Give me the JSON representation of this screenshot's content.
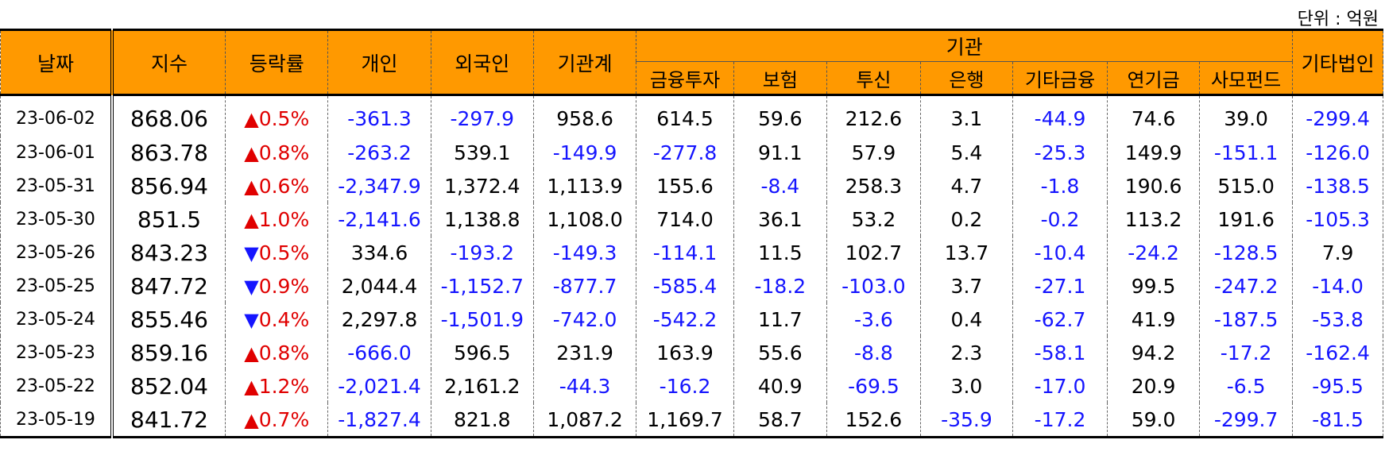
{
  "unit_label": "단위 : 억원",
  "headers": {
    "date": "날짜",
    "index": "지수",
    "change": "등락률",
    "individual": "개인",
    "foreign": "외국인",
    "inst_total": "기관계",
    "institution": "기관",
    "sub": [
      "금융투자",
      "보험",
      "투신",
      "은행",
      "기타금융",
      "연기금",
      "사모펀드"
    ],
    "other_corp": "기타법인"
  },
  "rows": [
    {
      "date": "23-06-02",
      "index": "868.06",
      "dir": "up",
      "change": "0.5%",
      "individual": "-361.3",
      "foreign": "-297.9",
      "inst_total": "958.6",
      "sub": [
        "614.5",
        "59.6",
        "212.6",
        "3.1",
        "-44.9",
        "74.6",
        "39.0"
      ],
      "other_corp": "-299.4"
    },
    {
      "date": "23-06-01",
      "index": "863.78",
      "dir": "up",
      "change": "0.8%",
      "individual": "-263.2",
      "foreign": "539.1",
      "inst_total": "-149.9",
      "sub": [
        "-277.8",
        "91.1",
        "57.9",
        "5.4",
        "-25.3",
        "149.9",
        "-151.1"
      ],
      "other_corp": "-126.0"
    },
    {
      "date": "23-05-31",
      "index": "856.94",
      "dir": "up",
      "change": "0.6%",
      "individual": "-2,347.9",
      "foreign": "1,372.4",
      "inst_total": "1,113.9",
      "sub": [
        "155.6",
        "-8.4",
        "258.3",
        "4.7",
        "-1.8",
        "190.6",
        "515.0"
      ],
      "other_corp": "-138.5"
    },
    {
      "date": "23-05-30",
      "index": "851.5",
      "dir": "up",
      "change": "1.0%",
      "individual": "-2,141.6",
      "foreign": "1,138.8",
      "inst_total": "1,108.0",
      "sub": [
        "714.0",
        "36.1",
        "53.2",
        "0.2",
        "-0.2",
        "113.2",
        "191.6"
      ],
      "other_corp": "-105.3"
    },
    {
      "date": "23-05-26",
      "index": "843.23",
      "dir": "down",
      "change": "0.5%",
      "individual": "334.6",
      "foreign": "-193.2",
      "inst_total": "-149.3",
      "sub": [
        "-114.1",
        "11.5",
        "102.7",
        "13.7",
        "-10.4",
        "-24.2",
        "-128.5"
      ],
      "other_corp": "7.9"
    },
    {
      "date": "23-05-25",
      "index": "847.72",
      "dir": "down",
      "change": "0.9%",
      "individual": "2,044.4",
      "foreign": "-1,152.7",
      "inst_total": "-877.7",
      "sub": [
        "-585.4",
        "-18.2",
        "-103.0",
        "3.7",
        "-27.1",
        "99.5",
        "-247.2"
      ],
      "other_corp": "-14.0"
    },
    {
      "date": "23-05-24",
      "index": "855.46",
      "dir": "down",
      "change": "0.4%",
      "individual": "2,297.8",
      "foreign": "-1,501.9",
      "inst_total": "-742.0",
      "sub": [
        "-542.2",
        "11.7",
        "-3.6",
        "0.4",
        "-62.7",
        "41.9",
        "-187.5"
      ],
      "other_corp": "-53.8"
    },
    {
      "date": "23-05-23",
      "index": "859.16",
      "dir": "up",
      "change": "0.8%",
      "individual": "-666.0",
      "foreign": "596.5",
      "inst_total": "231.9",
      "sub": [
        "163.9",
        "55.6",
        "-8.8",
        "2.3",
        "-58.1",
        "94.2",
        "-17.2"
      ],
      "other_corp": "-162.4"
    },
    {
      "date": "23-05-22",
      "index": "852.04",
      "dir": "up",
      "change": "1.2%",
      "individual": "-2,021.4",
      "foreign": "2,161.2",
      "inst_total": "-44.3",
      "sub": [
        "-16.2",
        "40.9",
        "-69.5",
        "3.0",
        "-17.0",
        "20.9",
        "-6.5"
      ],
      "other_corp": "-95.5"
    },
    {
      "date": "23-05-19",
      "index": "841.72",
      "dir": "up",
      "change": "0.7%",
      "individual": "-1,827.4",
      "foreign": "821.8",
      "inst_total": "1,087.2",
      "sub": [
        "1,169.7",
        "58.7",
        "152.6",
        "-35.9",
        "-17.2",
        "59.0",
        "-299.7"
      ],
      "other_corp": "-81.5"
    }
  ],
  "colors": {
    "header_bg": "#ff9900",
    "negative": "#1515ff",
    "up_arrow": "#e00000",
    "down_arrow": "#1515ff"
  },
  "icons": {
    "up": "▲",
    "down": "▼"
  }
}
